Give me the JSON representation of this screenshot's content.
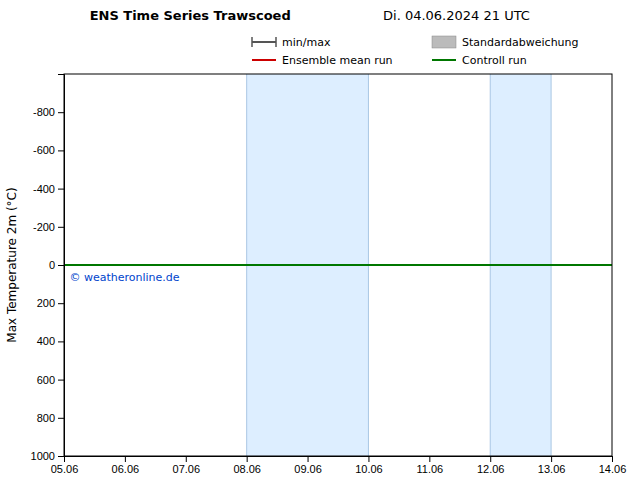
{
  "chart_data": {
    "type": "line",
    "title": "ENS Time Series Trawscoed",
    "subtitle": "Di. 04.06.2024 21 UTC",
    "y_label": "Max Temperature 2m (°C)",
    "categories": [
      "05.06",
      "06.06",
      "07.06",
      "08.06",
      "09.06",
      "10.06",
      "11.06",
      "12.06",
      "13.06",
      "14.06"
    ],
    "series": [
      {
        "name": "min/max",
        "type": "line",
        "marker": "tick",
        "color": "#555555",
        "values": [
          null,
          null,
          null,
          null,
          null,
          null,
          null,
          null,
          null,
          null
        ]
      },
      {
        "name": "Standardabweichung",
        "type": "area",
        "color": "#bbbbbb",
        "values": [
          null,
          null,
          null,
          null,
          null,
          null,
          null,
          null,
          null,
          null
        ]
      },
      {
        "name": "Ensemble mean run",
        "type": "line",
        "color": "#cc0000",
        "values": [
          0,
          0,
          0,
          0,
          0,
          0,
          0,
          0,
          0,
          0
        ]
      },
      {
        "name": "Controll run",
        "type": "line",
        "color": "#007700",
        "values": [
          0,
          0,
          0,
          0,
          0,
          0,
          0,
          0,
          0,
          0
        ]
      }
    ],
    "shaded_regions": [
      {
        "from": "08.06",
        "to": "10.06",
        "color": "#ddeeff"
      },
      {
        "from": "12.06",
        "to": "13.06",
        "color": "#ddeeff"
      }
    ],
    "annotations": [
      {
        "text": "© weatheronline.de",
        "y": 30,
        "color": "#0044cc"
      }
    ],
    "ylim": [
      1000,
      -1000
    ],
    "yticks": [
      -800,
      -600,
      -400,
      -200,
      0,
      200,
      400,
      600,
      800,
      1000
    ],
    "grid": false,
    "legend": "upper right"
  }
}
